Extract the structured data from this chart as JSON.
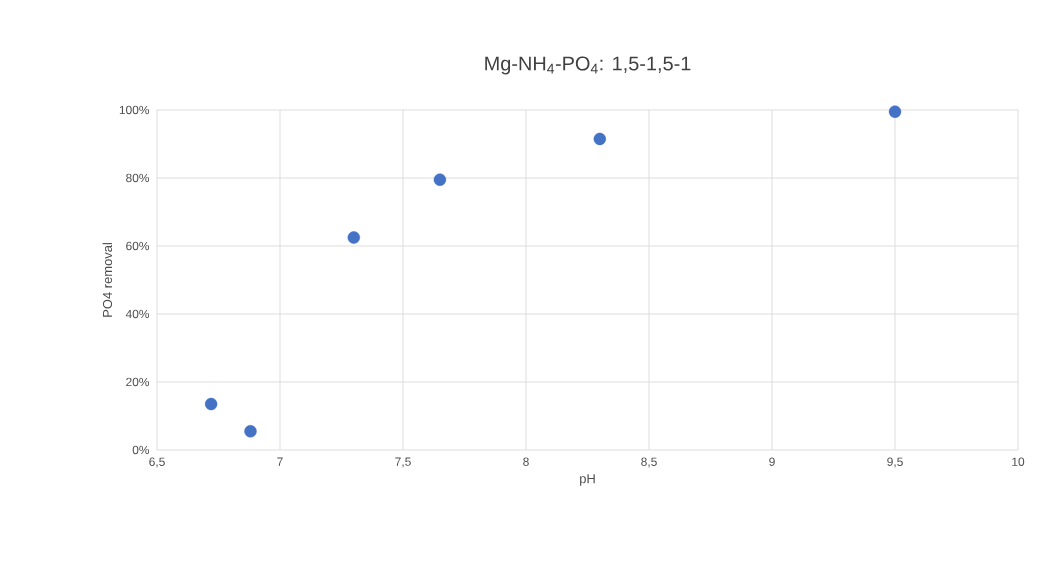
{
  "chart_data": {
    "type": "scatter",
    "title": "Mg-NH$_{4}$-PO$_{4}$: 1,5-1,5-1",
    "xlabel": "pH",
    "ylabel": "PO4 removal",
    "x": [
      6.72,
      6.88,
      7.3,
      7.65,
      8.3,
      9.5
    ],
    "values": [
      13.5,
      5.5,
      62.5,
      79.5,
      91.5,
      99.5
    ],
    "color": "#4472c4",
    "marker": "circle",
    "grid": true,
    "xlim": [
      6.5,
      10
    ],
    "ylim": [
      0,
      100
    ],
    "xticks": [
      {
        "value": 6.5,
        "label": "6,5"
      },
      7,
      {
        "value": 7.5,
        "label": "7,5"
      },
      8,
      {
        "value": 8.5,
        "label": "8,5"
      },
      9,
      {
        "value": 9.5,
        "label": "9,5"
      },
      10
    ],
    "yticks": [
      {
        "value": 0,
        "label": "0%"
      },
      {
        "value": 20,
        "label": "20%"
      },
      {
        "value": 40,
        "label": "40%"
      },
      {
        "value": 60,
        "label": "60%"
      },
      {
        "value": 80,
        "label": "80%"
      },
      {
        "value": 100,
        "label": "100%"
      }
    ]
  }
}
